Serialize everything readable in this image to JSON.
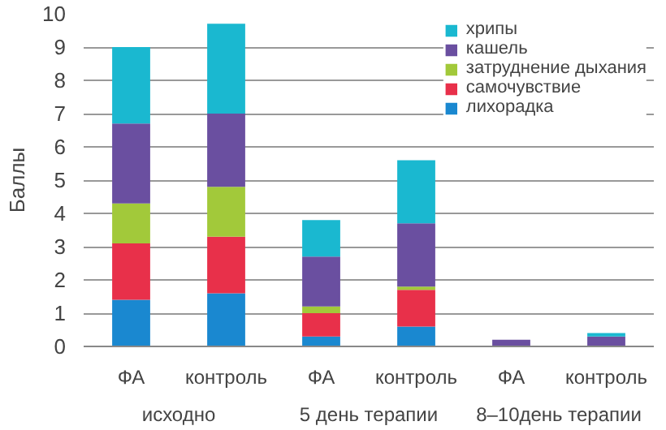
{
  "chart_data": {
    "type": "bar",
    "stacked": true,
    "ylabel": "Баллы",
    "categories": [
      "ФА",
      "контроль",
      "ФА",
      "контроль",
      "ФА",
      "контроль"
    ],
    "annotations": [
      "исходно",
      "5 день терапии",
      "8–10день терапии"
    ],
    "series": [
      {
        "name": "лихорадка",
        "color": "#1a88d0",
        "values": [
          1.4,
          1.6,
          0.3,
          0.6,
          0,
          0
        ]
      },
      {
        "name": "самочувствие",
        "color": "#e8304a",
        "values": [
          1.7,
          1.7,
          0.7,
          1.1,
          0,
          0
        ]
      },
      {
        "name": "затруднение дыхания",
        "color": "#a2c93a",
        "values": [
          1.2,
          1.5,
          0.2,
          0.1,
          0,
          0
        ]
      },
      {
        "name": "кашель",
        "color": "#6a4fa0",
        "values": [
          2.4,
          2.2,
          1.5,
          1.9,
          0.2,
          0.3
        ]
      },
      {
        "name": "хрипы",
        "color": "#1ab8d0",
        "values": [
          2.3,
          2.7,
          1.1,
          1.9,
          0,
          0.1
        ]
      }
    ],
    "ylim": [
      0,
      10
    ],
    "yticks": [
      0,
      1,
      2,
      3,
      4,
      5,
      6,
      7,
      8,
      9,
      10
    ],
    "grid": "y",
    "legend": "top right"
  }
}
